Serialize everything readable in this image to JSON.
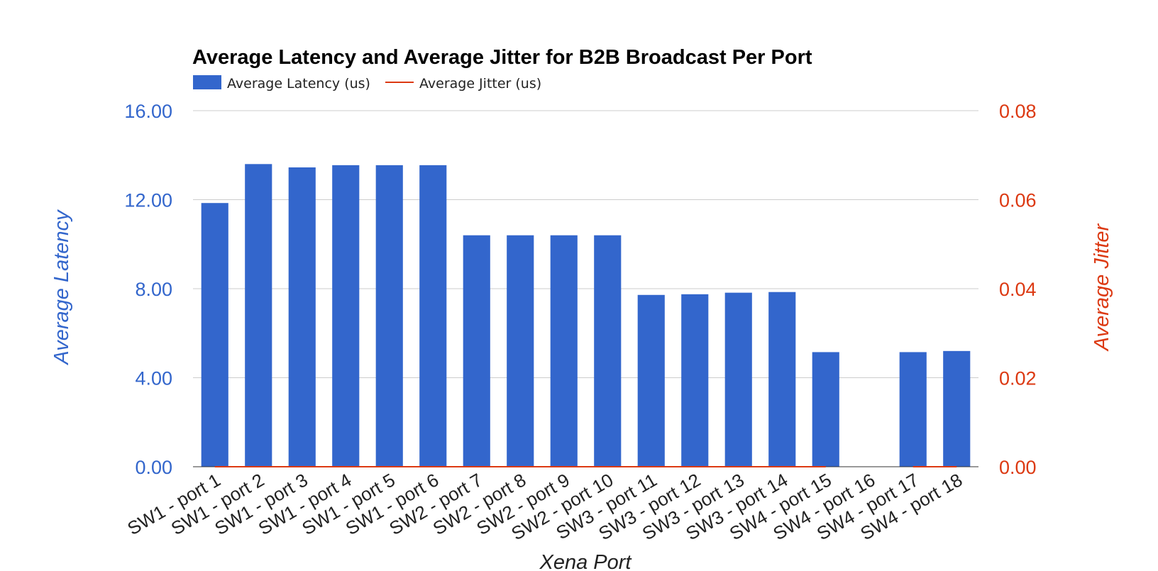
{
  "chart_data": {
    "type": "bar",
    "title": "Average Latency and Average Jitter for B2B Broadcast Per Port",
    "xlabel": "Xena Port",
    "ylabel": "Average Latency",
    "y2label": "Average Jitter",
    "categories": [
      "SW1 - port 1",
      "SW1 - port 2",
      "SW1 - port 3",
      "SW1 - port 4",
      "SW1 - port 5",
      "SW1 - port 6",
      "SW2 - port 7",
      "SW2 - port 8",
      "SW2 - port 9",
      "SW2 - port 10",
      "SW3 - port 11",
      "SW3 - port 12",
      "SW3 - port 13",
      "SW3 - port 14",
      "SW4 - port 15",
      "SW4 - port 16",
      "SW4 - port 17",
      "SW4 - port 18"
    ],
    "series": [
      {
        "name": "Average Latency (us)",
        "kind": "bar",
        "axis": "left",
        "color": "#3366cc",
        "values": [
          11.85,
          13.6,
          13.45,
          13.55,
          13.55,
          13.55,
          10.4,
          10.4,
          10.4,
          10.4,
          7.72,
          7.75,
          7.82,
          7.85,
          5.15,
          0,
          5.15,
          5.2
        ]
      },
      {
        "name": "Average Jitter (us)",
        "kind": "line",
        "axis": "right",
        "color": "#dc3912",
        "values": [
          0,
          0,
          0,
          0,
          0,
          0,
          0,
          0,
          0,
          0,
          0,
          0,
          0,
          0,
          0,
          null,
          0,
          0
        ]
      }
    ],
    "ylim": [
      0,
      16
    ],
    "y2lim": [
      0,
      0.08
    ],
    "yticks": [
      "0.00",
      "4.00",
      "8.00",
      "12.00",
      "16.00"
    ],
    "y2ticks": [
      "0.00",
      "0.02",
      "0.04",
      "0.06",
      "0.08"
    ],
    "grid": true,
    "legend": "top-left"
  }
}
